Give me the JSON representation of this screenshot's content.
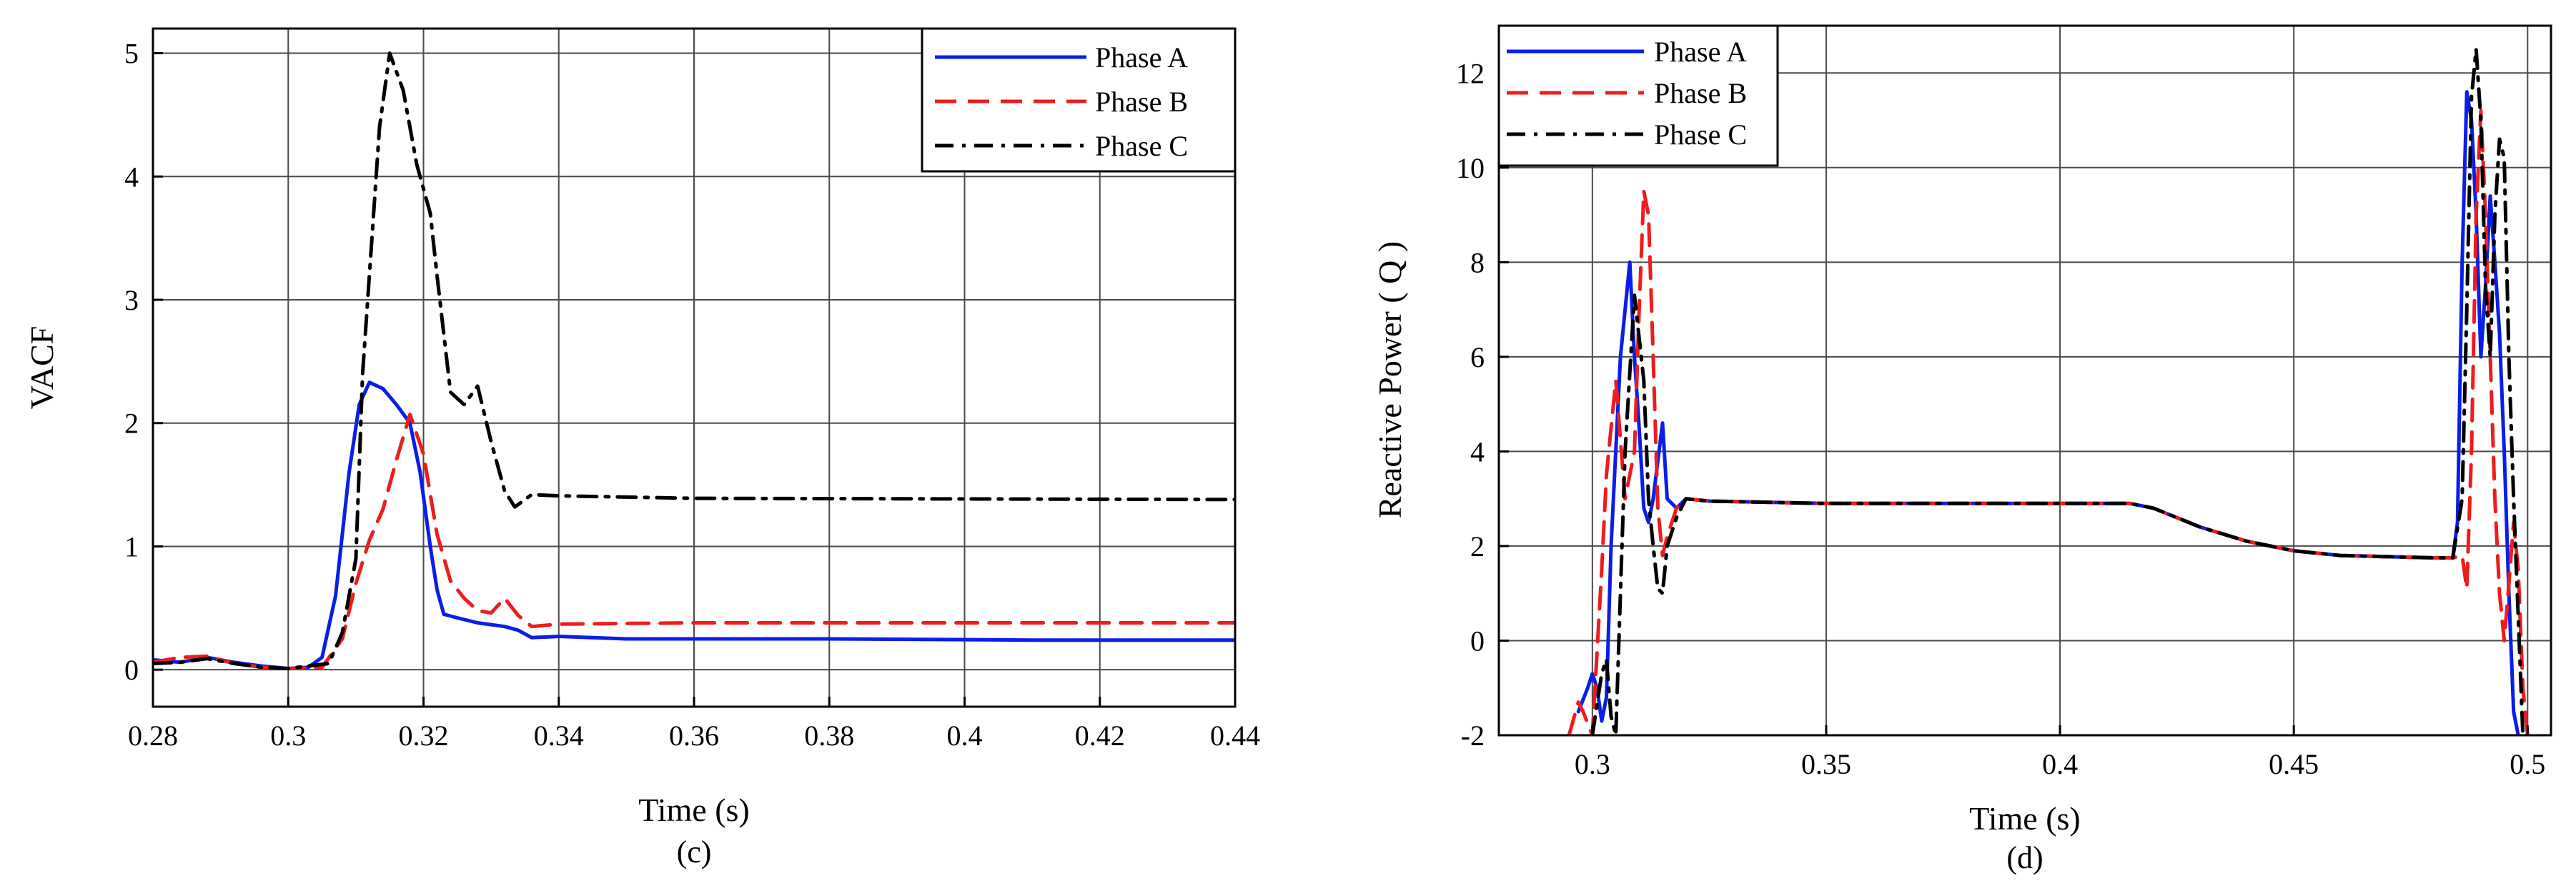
{
  "colors": {
    "phase_a": "#0a1ee8",
    "phase_b": "#ee1c1c",
    "phase_c": "#000000"
  },
  "chart_data": [
    {
      "type": "line",
      "panel": "(c)",
      "title": "",
      "xlabel": "Time (s)",
      "ylabel": "VACF",
      "xlim": [
        0.28,
        0.44
      ],
      "ylim": [
        -0.3,
        5.2
      ],
      "xticks": [
        0.28,
        0.3,
        0.32,
        0.34,
        0.36,
        0.38,
        0.4,
        0.42,
        0.44
      ],
      "xtick_labels": [
        "0.28",
        "0.3",
        "0.32",
        "0.34",
        "0.36",
        "0.38",
        "0.4",
        "0.42",
        "0.44"
      ],
      "yticks": [
        0,
        1,
        2,
        3,
        4,
        5
      ],
      "ytick_labels": [
        "0",
        "1",
        "2",
        "3",
        "4",
        "5"
      ],
      "grid": true,
      "legend": "top-right",
      "series": [
        {
          "name": "Phase A",
          "style": "solid",
          "colorKey": "phase_a",
          "x": [
            0.28,
            0.284,
            0.288,
            0.292,
            0.296,
            0.3,
            0.303,
            0.305,
            0.307,
            0.309,
            0.3105,
            0.312,
            0.314,
            0.316,
            0.318,
            0.3195,
            0.321,
            0.322,
            0.323,
            0.325,
            0.328,
            0.332,
            0.334,
            0.336,
            0.34,
            0.35,
            0.38,
            0.41,
            0.44
          ],
          "y": [
            0.08,
            0.06,
            0.1,
            0.06,
            0.03,
            0.01,
            0.02,
            0.1,
            0.6,
            1.6,
            2.15,
            2.33,
            2.28,
            2.15,
            2.0,
            1.6,
            1.0,
            0.65,
            0.45,
            0.42,
            0.38,
            0.35,
            0.32,
            0.26,
            0.27,
            0.25,
            0.25,
            0.24,
            0.24
          ]
        },
        {
          "name": "Phase B",
          "style": "dashed",
          "colorKey": "phase_b",
          "x": [
            0.28,
            0.284,
            0.288,
            0.292,
            0.296,
            0.3,
            0.305,
            0.308,
            0.31,
            0.312,
            0.314,
            0.316,
            0.318,
            0.32,
            0.322,
            0.324,
            0.326,
            0.328,
            0.33,
            0.332,
            0.334,
            0.336,
            0.34,
            0.36,
            0.44
          ],
          "y": [
            0.06,
            0.1,
            0.11,
            0.05,
            0.02,
            0.01,
            0.02,
            0.25,
            0.7,
            1.05,
            1.3,
            1.7,
            2.07,
            1.75,
            1.1,
            0.72,
            0.58,
            0.48,
            0.46,
            0.58,
            0.44,
            0.35,
            0.37,
            0.38,
            0.38
          ]
        },
        {
          "name": "Phase C",
          "style": "dashdot",
          "colorKey": "phase_c",
          "x": [
            0.28,
            0.284,
            0.288,
            0.292,
            0.296,
            0.3,
            0.306,
            0.308,
            0.31,
            0.311,
            0.312,
            0.3135,
            0.315,
            0.317,
            0.319,
            0.321,
            0.322,
            0.324,
            0.326,
            0.328,
            0.33,
            0.332,
            0.3335,
            0.336,
            0.34,
            0.36,
            0.44
          ],
          "y": [
            0.05,
            0.06,
            0.09,
            0.05,
            0.02,
            0.01,
            0.05,
            0.3,
            0.9,
            2.4,
            3.2,
            4.4,
            5.0,
            4.7,
            4.1,
            3.7,
            3.2,
            2.25,
            2.15,
            2.3,
            1.85,
            1.45,
            1.32,
            1.42,
            1.41,
            1.39,
            1.38
          ]
        }
      ]
    },
    {
      "type": "line",
      "panel": "(d)",
      "title": "",
      "xlabel": "Time (s)",
      "ylabel": "Reactive Power ( Q )",
      "xlim": [
        0.28,
        0.505
      ],
      "ylim": [
        -2,
        13
      ],
      "xticks": [
        0.3,
        0.35,
        0.4,
        0.45,
        0.5
      ],
      "xtick_labels": [
        "0.3",
        "0.35",
        "0.4",
        "0.45",
        "0.5"
      ],
      "yticks": [
        -2,
        0,
        2,
        4,
        6,
        8,
        10,
        12
      ],
      "ytick_labels": [
        "-2",
        "0",
        "2",
        "4",
        "6",
        "8",
        "10",
        "12"
      ],
      "grid": true,
      "legend": "top-left",
      "series": [
        {
          "name": "Phase A",
          "style": "solid",
          "colorKey": "phase_a",
          "x": [
            0.297,
            0.299,
            0.3,
            0.301,
            0.302,
            0.303,
            0.304,
            0.306,
            0.308,
            0.309,
            0.31,
            0.311,
            0.312,
            0.313,
            0.315,
            0.316,
            0.318,
            0.32,
            0.325,
            0.35,
            0.4,
            0.415,
            0.42,
            0.43,
            0.44,
            0.45,
            0.46,
            0.48,
            0.484,
            0.485,
            0.486,
            0.487,
            0.488,
            0.489,
            0.49,
            0.491,
            0.492,
            0.493,
            0.494,
            0.495,
            0.496,
            0.497,
            0.498
          ],
          "y": [
            -1.5,
            -1.0,
            -0.7,
            -1.0,
            -1.7,
            -1.2,
            2.0,
            6.0,
            8.0,
            6.0,
            4.5,
            2.8,
            2.5,
            3.0,
            4.6,
            3.0,
            2.8,
            3.0,
            2.95,
            2.9,
            2.9,
            2.9,
            2.8,
            2.4,
            2.1,
            1.9,
            1.8,
            1.75,
            1.75,
            2.5,
            8.0,
            11.6,
            11.0,
            9.0,
            6.0,
            7.5,
            9.4,
            8.0,
            6.5,
            4.0,
            1.0,
            -1.5,
            -2.0
          ]
        },
        {
          "name": "Phase B",
          "style": "dashed",
          "colorKey": "phase_b",
          "x": [
            0.295,
            0.297,
            0.298,
            0.3,
            0.302,
            0.303,
            0.305,
            0.307,
            0.309,
            0.31,
            0.311,
            0.312,
            0.313,
            0.314,
            0.315,
            0.316,
            0.318,
            0.32,
            0.325,
            0.35,
            0.4,
            0.415,
            0.42,
            0.43,
            0.44,
            0.45,
            0.46,
            0.48,
            0.484,
            0.486,
            0.487,
            0.488,
            0.489,
            0.49,
            0.491,
            0.492,
            0.493,
            0.494,
            0.495,
            0.496,
            0.497,
            0.498,
            0.499,
            0.5
          ],
          "y": [
            -2.0,
            -1.3,
            -1.5,
            -2.0,
            1.5,
            3.5,
            5.5,
            3.0,
            4.0,
            7.0,
            9.5,
            9.0,
            6.0,
            2.8,
            1.8,
            2.2,
            2.8,
            3.0,
            2.95,
            2.9,
            2.9,
            2.9,
            2.8,
            2.4,
            2.1,
            1.9,
            1.8,
            1.75,
            1.75,
            1.8,
            1.1,
            4.0,
            9.0,
            11.2,
            9.0,
            6.0,
            3.0,
            1.0,
            0.0,
            1.2,
            2.5,
            1.5,
            -1.0,
            -2.0
          ]
        },
        {
          "name": "Phase C",
          "style": "dashdot",
          "colorKey": "phase_c",
          "x": [
            0.3,
            0.302,
            0.303,
            0.304,
            0.305,
            0.306,
            0.307,
            0.309,
            0.311,
            0.312,
            0.313,
            0.314,
            0.315,
            0.316,
            0.318,
            0.32,
            0.325,
            0.35,
            0.4,
            0.415,
            0.42,
            0.43,
            0.44,
            0.45,
            0.46,
            0.48,
            0.484,
            0.486,
            0.487,
            0.488,
            0.489,
            0.49,
            0.491,
            0.492,
            0.493,
            0.494,
            0.495,
            0.496,
            0.497,
            0.498,
            0.499
          ],
          "y": [
            -2.0,
            -0.7,
            -0.4,
            -1.6,
            -2.0,
            1.0,
            4.0,
            7.3,
            5.5,
            3.0,
            2.0,
            1.1,
            1.0,
            2.0,
            2.6,
            3.0,
            2.95,
            2.9,
            2.9,
            2.9,
            2.8,
            2.4,
            2.1,
            1.9,
            1.8,
            1.75,
            1.75,
            3.0,
            7.0,
            11.5,
            12.5,
            11.0,
            7.5,
            6.0,
            9.0,
            10.6,
            10.2,
            6.0,
            3.0,
            0.5,
            -2.0
          ]
        }
      ]
    }
  ]
}
